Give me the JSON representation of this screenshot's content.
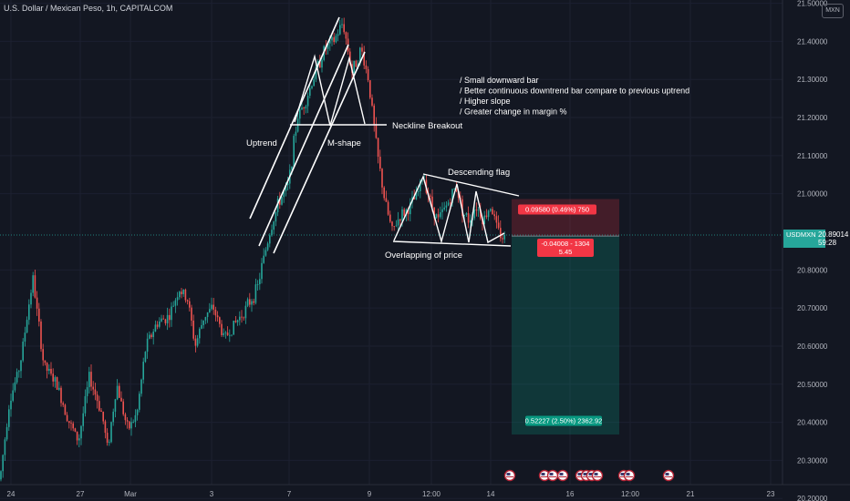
{
  "chart_data": {
    "type": "candlestick",
    "title": "U.S. Dollar / Mexican Peso, 1h, CAPITALCOM",
    "currency_badge": "MXN",
    "symbol": "USDMXN",
    "last_price": "20.89014",
    "countdown": "59:28",
    "ylim": [
      20.15,
      21.6
    ],
    "y_ticks": [
      {
        "value": 21.5,
        "label": "21.50000"
      },
      {
        "value": 21.4,
        "label": "21.40000"
      },
      {
        "value": 21.3,
        "label": "21.30000"
      },
      {
        "value": 21.2,
        "label": "21.20000"
      },
      {
        "value": 21.1,
        "label": "21.10000"
      },
      {
        "value": 21.0,
        "label": "21.00000"
      },
      {
        "value": 20.8,
        "label": "20.80000"
      },
      {
        "value": 20.7,
        "label": "20.70000"
      },
      {
        "value": 20.6,
        "label": "20.60000"
      },
      {
        "value": 20.5,
        "label": "20.50000"
      },
      {
        "value": 20.4,
        "label": "20.40000"
      },
      {
        "value": 20.3,
        "label": "20.30000"
      },
      {
        "value": 20.2,
        "label": "20.20000"
      }
    ],
    "x_ticks": [
      "24",
      "27",
      "Mar",
      "3",
      "7",
      "9",
      "12:00",
      "14",
      "16",
      "12:00",
      "21",
      "23"
    ],
    "trade": {
      "stop_label": "0.09580 (0.46%) 750",
      "stop_price": 20.986,
      "entry_label_line1": "-0.04008 - 1304",
      "entry_label_line2": "5.45",
      "entry_price": 20.889,
      "target_label": "0.52227 (2.50%) 2362.92",
      "target_price": 20.368
    },
    "annotations": {
      "uptrend": "Uptrend",
      "m_shape": "M-shape",
      "neckline": "Neckline Breakout",
      "descending_flag": "Descending flag",
      "overlap": "Overlapping of price",
      "notes": [
        "/ Small downward bar",
        "/ Better continuous downtrend bar compare to previous uptrend",
        "/ Higher slope",
        "/ Greater change in margin %"
      ]
    },
    "up_color": "#26a69a",
    "down_color": "#ef5350"
  }
}
